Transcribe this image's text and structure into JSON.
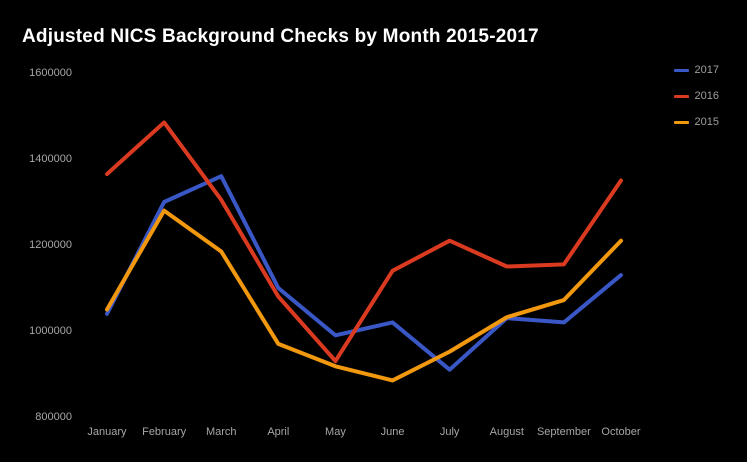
{
  "title": "Adjusted NICS Background Checks by Month 2015-2017",
  "colors": {
    "background": "#000000",
    "title_text": "#ffffff",
    "axis_text": "#a6a6a6",
    "legend_text": "#9e9e9e"
  },
  "chart_data": {
    "type": "line",
    "title": "Adjusted NICS Background Checks by Month 2015-2017",
    "xlabel": "",
    "ylabel": "",
    "categories": [
      "January",
      "February",
      "March",
      "April",
      "May",
      "June",
      "July",
      "August",
      "September",
      "October"
    ],
    "series": [
      {
        "name": "2017",
        "color": "#3a57c6",
        "values": [
          1040000,
          1300000,
          1360000,
          1100000,
          990000,
          1020000,
          910000,
          1030000,
          1020000,
          1130000
        ]
      },
      {
        "name": "2016",
        "color": "#d93a20",
        "values": [
          1365000,
          1485000,
          1305000,
          1080000,
          930000,
          1140000,
          1210000,
          1150000,
          1155000,
          1350000
        ]
      },
      {
        "name": "2015",
        "color": "#f2980f",
        "values": [
          1050000,
          1280000,
          1185000,
          970000,
          918000,
          885000,
          952000,
          1032000,
          1072000,
          1210000
        ]
      }
    ],
    "ylim": [
      800000,
      1600000
    ],
    "yticks": [
      800000,
      1000000,
      1200000,
      1400000,
      1600000
    ],
    "ytick_labels": [
      "800000",
      "1000000",
      "1200000",
      "1400000",
      "1600000"
    ],
    "grid": false,
    "legend_position": "top-right",
    "line_width": 4
  }
}
